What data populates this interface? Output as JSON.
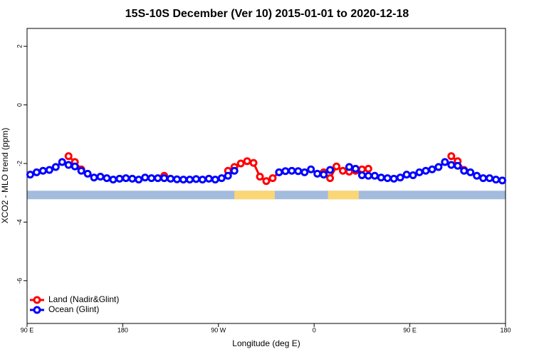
{
  "chart_data": {
    "type": "line",
    "title": "15S-10S December (Ver 10)   2015-01-01 to 2020-12-18",
    "x_label": "Longitude (deg E)",
    "y_label": "XCO2 - MLO trend (ppm)",
    "x": [
      93,
      99,
      105,
      111,
      117,
      123,
      129,
      135,
      141,
      147,
      153,
      159,
      165,
      171,
      177,
      183,
      189,
      195,
      201,
      207,
      213,
      219,
      225,
      231,
      237,
      243,
      249,
      255,
      261,
      267,
      273,
      279,
      285,
      291,
      297,
      303,
      309,
      315,
      321,
      327,
      333,
      339,
      345,
      351,
      357,
      363,
      369,
      375,
      381,
      387,
      393,
      399,
      405,
      411,
      417,
      423,
      429,
      435,
      441,
      447,
      453,
      459,
      465,
      471,
      477,
      483,
      489,
      495,
      501,
      507,
      513,
      519,
      525,
      531,
      537
    ],
    "series": [
      {
        "name": "Land (Nadir&Glint)",
        "color": "#ff0000",
        "values": [
          null,
          null,
          null,
          null,
          null,
          null,
          -1.75,
          -1.95,
          -2.2,
          null,
          null,
          null,
          null,
          null,
          null,
          null,
          null,
          null,
          null,
          null,
          null,
          -2.42,
          null,
          null,
          null,
          null,
          null,
          null,
          null,
          null,
          null,
          -2.25,
          -2.12,
          -2.0,
          -1.92,
          -1.98,
          -2.45,
          -2.6,
          -2.5,
          -2.3,
          null,
          null,
          null,
          null,
          null,
          null,
          -2.3,
          -2.5,
          -2.1,
          -2.25,
          -2.28,
          -2.25,
          -2.2,
          -2.18,
          null,
          null,
          null,
          null,
          null,
          null,
          null,
          null,
          null,
          null,
          null,
          null,
          -1.75,
          -1.92,
          -2.22,
          null,
          null,
          null,
          null,
          null,
          null
        ]
      },
      {
        "name": "Ocean (Glint)",
        "color": "#0000ff",
        "values": [
          -2.38,
          -2.3,
          -2.25,
          -2.22,
          -2.12,
          -1.95,
          -2.05,
          -2.1,
          -2.25,
          -2.35,
          -2.48,
          -2.45,
          -2.5,
          -2.55,
          -2.52,
          -2.5,
          -2.52,
          -2.55,
          -2.48,
          -2.5,
          -2.5,
          -2.5,
          -2.52,
          -2.54,
          -2.55,
          -2.55,
          -2.53,
          -2.55,
          -2.52,
          -2.55,
          -2.5,
          -2.42,
          -2.25,
          null,
          null,
          null,
          null,
          null,
          null,
          -2.3,
          -2.26,
          -2.25,
          -2.26,
          -2.3,
          -2.2,
          -2.35,
          -2.38,
          -2.22,
          null,
          null,
          -2.12,
          -2.18,
          -2.4,
          -2.42,
          -2.42,
          -2.48,
          -2.5,
          -2.52,
          -2.48,
          -2.38,
          -2.4,
          -2.3,
          -2.25,
          -2.2,
          -2.12,
          -1.95,
          -2.05,
          -2.08,
          -2.25,
          -2.3,
          -2.42,
          -2.5,
          -2.5,
          -2.55,
          -2.58
        ]
      }
    ],
    "surface_band": {
      "range": [
        -3.22,
        -2.93
      ],
      "ocean_color": "#a3bbdc",
      "land_color": "#fbd675",
      "land_spans": [
        [
          285,
          323
        ],
        [
          373,
          402
        ]
      ]
    },
    "xlim": [
      90,
      540
    ],
    "xticks": [
      {
        "value": 90,
        "label": "90 E"
      },
      180,
      {
        "value": 270,
        "label": "90 W"
      },
      {
        "value": 360,
        "label": "0"
      },
      {
        "value": 450,
        "label": "90 E"
      },
      {
        "value": 540,
        "label": "180"
      }
    ],
    "ylim": [
      -7.46,
      2.61
    ],
    "yticks": [
      2,
      0,
      -2,
      -4,
      -6
    ],
    "legend": "bottom-left"
  }
}
